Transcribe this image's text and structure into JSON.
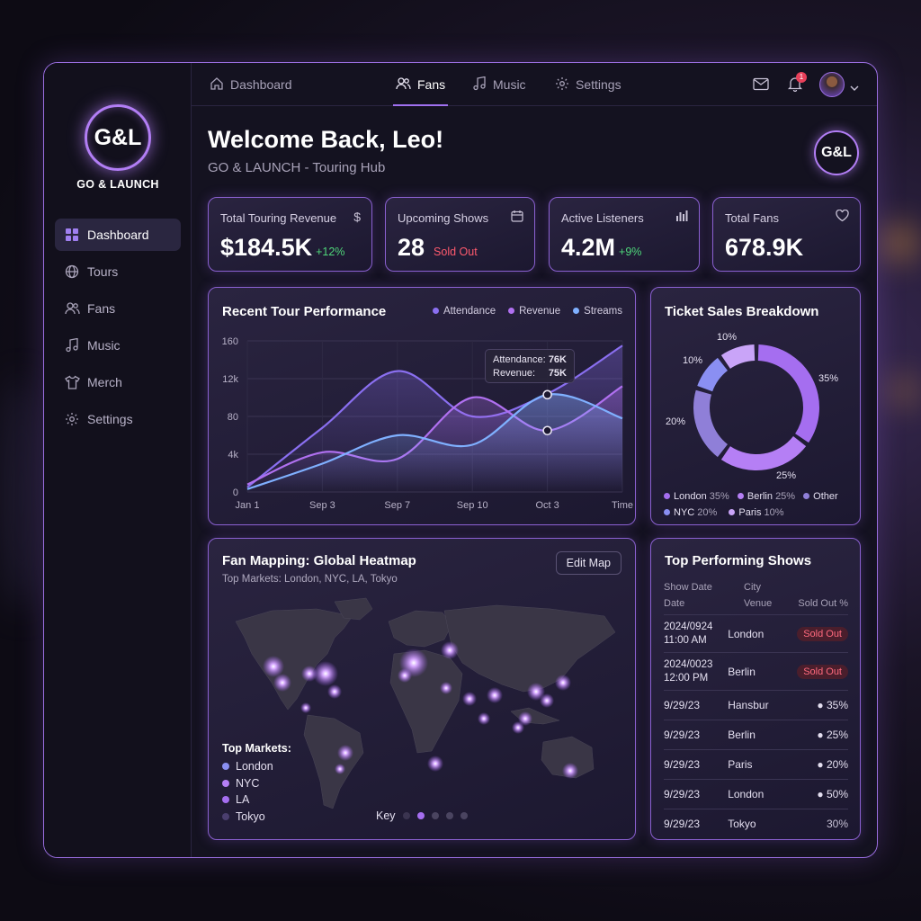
{
  "brand": {
    "initials": "G&L",
    "name": "GO & LAUNCH"
  },
  "sidebar": {
    "items": [
      {
        "label": "Dashboard",
        "icon": "grid-icon",
        "active": true
      },
      {
        "label": "Tours",
        "icon": "globe-icon"
      },
      {
        "label": "Fans",
        "icon": "users-icon"
      },
      {
        "label": "Music",
        "icon": "music-note-icon"
      },
      {
        "label": "Merch",
        "icon": "tshirt-icon"
      },
      {
        "label": "Settings",
        "icon": "gear-icon"
      }
    ]
  },
  "topbar": {
    "breadcrumb": "Dashboard",
    "tabs": [
      {
        "label": "Fans",
        "icon": "users-icon",
        "active": true
      },
      {
        "label": "Music",
        "icon": "music-note-icon"
      },
      {
        "label": "Settings",
        "icon": "gear-icon"
      }
    ],
    "notification_count": "1"
  },
  "header": {
    "title": "Welcome Back, Leo!",
    "subtitle": "GO & LAUNCH - Touring Hub",
    "badge": "G&L"
  },
  "stats": [
    {
      "label": "Total Touring Revenue",
      "value": "$184.5K",
      "delta": "+12%",
      "delta_color": "#4fd67a",
      "icon": "dollar-icon"
    },
    {
      "label": "Upcoming Shows",
      "value": "28",
      "delta": "Sold Out",
      "delta_color": "#ff5a6e",
      "icon": "calendar-icon"
    },
    {
      "label": "Active Listeners",
      "value": "4.2M",
      "delta": "+9%",
      "delta_color": "#4fd67a",
      "icon": "bar-chart-icon"
    },
    {
      "label": "Total Fans",
      "value": "678.9K",
      "delta": "",
      "icon": "heart-icon"
    }
  ],
  "performance": {
    "title": "Recent Tour Performance",
    "tooltip": {
      "attendance_label": "Attendance:",
      "attendance_value": "76K",
      "revenue_label": "Revenue:",
      "revenue_value": "75K"
    }
  },
  "tickets": {
    "title": "Ticket Sales Breakdown",
    "legend": [
      {
        "city": "London",
        "pct": "35%",
        "color": "#a56ef0"
      },
      {
        "city": "Berlin",
        "pct": "25%",
        "color": "#b57ff5"
      },
      {
        "city": "Other",
        "pct": "",
        "color": "#8f7fd8"
      },
      {
        "city": "NYC",
        "pct": "20%",
        "color": "#8a8ff2"
      },
      {
        "city": "Paris",
        "pct": "10%",
        "color": "#c9a4f8"
      }
    ]
  },
  "heatmap": {
    "title": "Fan Mapping: Global Heatmap",
    "subtitle": "Top Markets: London, NYC, LA, Tokyo",
    "edit_button": "Edit Map",
    "markets_title": "Top Markets:",
    "markets": [
      {
        "name": "London",
        "color": "#8a8ff2"
      },
      {
        "name": "NYC",
        "color": "#b57ff5"
      },
      {
        "name": "LA",
        "color": "#a56ef0"
      },
      {
        "name": "Tokyo",
        "color": "#4a3e6e"
      }
    ],
    "key_label": "Key"
  },
  "shows": {
    "title": "Top Performing Shows",
    "headers": {
      "col1a": "Show Date",
      "col1b": "Date",
      "col2a": "City",
      "col2b": "Venue",
      "col3": "Sold Out %"
    },
    "rows": [
      {
        "date": "2024/0924",
        "time": "11:00 AM",
        "city": "London",
        "status": "Sold Out",
        "kind": "pill"
      },
      {
        "date": "2024/0023",
        "time": "12:00 PM",
        "city": "Berlin",
        "status": "Sold Out",
        "kind": "pill"
      },
      {
        "date": "9/29/23",
        "time": "",
        "city": "Hansbur",
        "status": "35%",
        "kind": "green"
      },
      {
        "date": "9/29/23",
        "time": "",
        "city": "Berlin",
        "status": "25%",
        "kind": "green"
      },
      {
        "date": "9/29/23",
        "time": "",
        "city": "Paris",
        "status": "20%",
        "kind": "green"
      },
      {
        "date": "9/29/23",
        "time": "",
        "city": "London",
        "status": "50%",
        "kind": "green"
      },
      {
        "date": "9/29/23",
        "time": "",
        "city": "Tokyo",
        "status": "30%",
        "kind": "plain"
      }
    ]
  },
  "chart_data": [
    {
      "type": "line",
      "title": "Recent Tour Performance",
      "categories": [
        "Jan 1",
        "Sep 3",
        "Sep 7",
        "Sep 10",
        "Oct 3",
        "Time"
      ],
      "yticks": [
        "0",
        "4k",
        "80",
        "12k",
        "160"
      ],
      "ylim": [
        0,
        160
      ],
      "legend_position": "top-right",
      "grid": true,
      "series": [
        {
          "name": "Attendance",
          "color": "#8a6ff0",
          "values": [
            5,
            68,
            128,
            80,
            104,
            155
          ]
        },
        {
          "name": "Revenue",
          "color": "#b070f0",
          "values": [
            8,
            42,
            35,
            100,
            65,
            112
          ]
        },
        {
          "name": "Streams",
          "color": "#7fb0ff",
          "values": [
            3,
            30,
            60,
            50,
            103,
            78
          ]
        }
      ]
    },
    {
      "type": "pie",
      "title": "Ticket Sales Breakdown",
      "donut": true,
      "slices": [
        {
          "label": "London",
          "value": 35,
          "display": "35%",
          "color": "#a56ef0"
        },
        {
          "label": "Berlin",
          "value": 25,
          "display": "25%",
          "color": "#b57ff5"
        },
        {
          "label": "NYC",
          "value": 20,
          "display": "20%",
          "color": "#8f7fd8"
        },
        {
          "label": "Paris",
          "value": 10,
          "display": "10%",
          "color": "#8a8ff2"
        },
        {
          "label": "Other",
          "value": 10,
          "display": "10%",
          "color": "#c9a4f8"
        }
      ]
    }
  ]
}
